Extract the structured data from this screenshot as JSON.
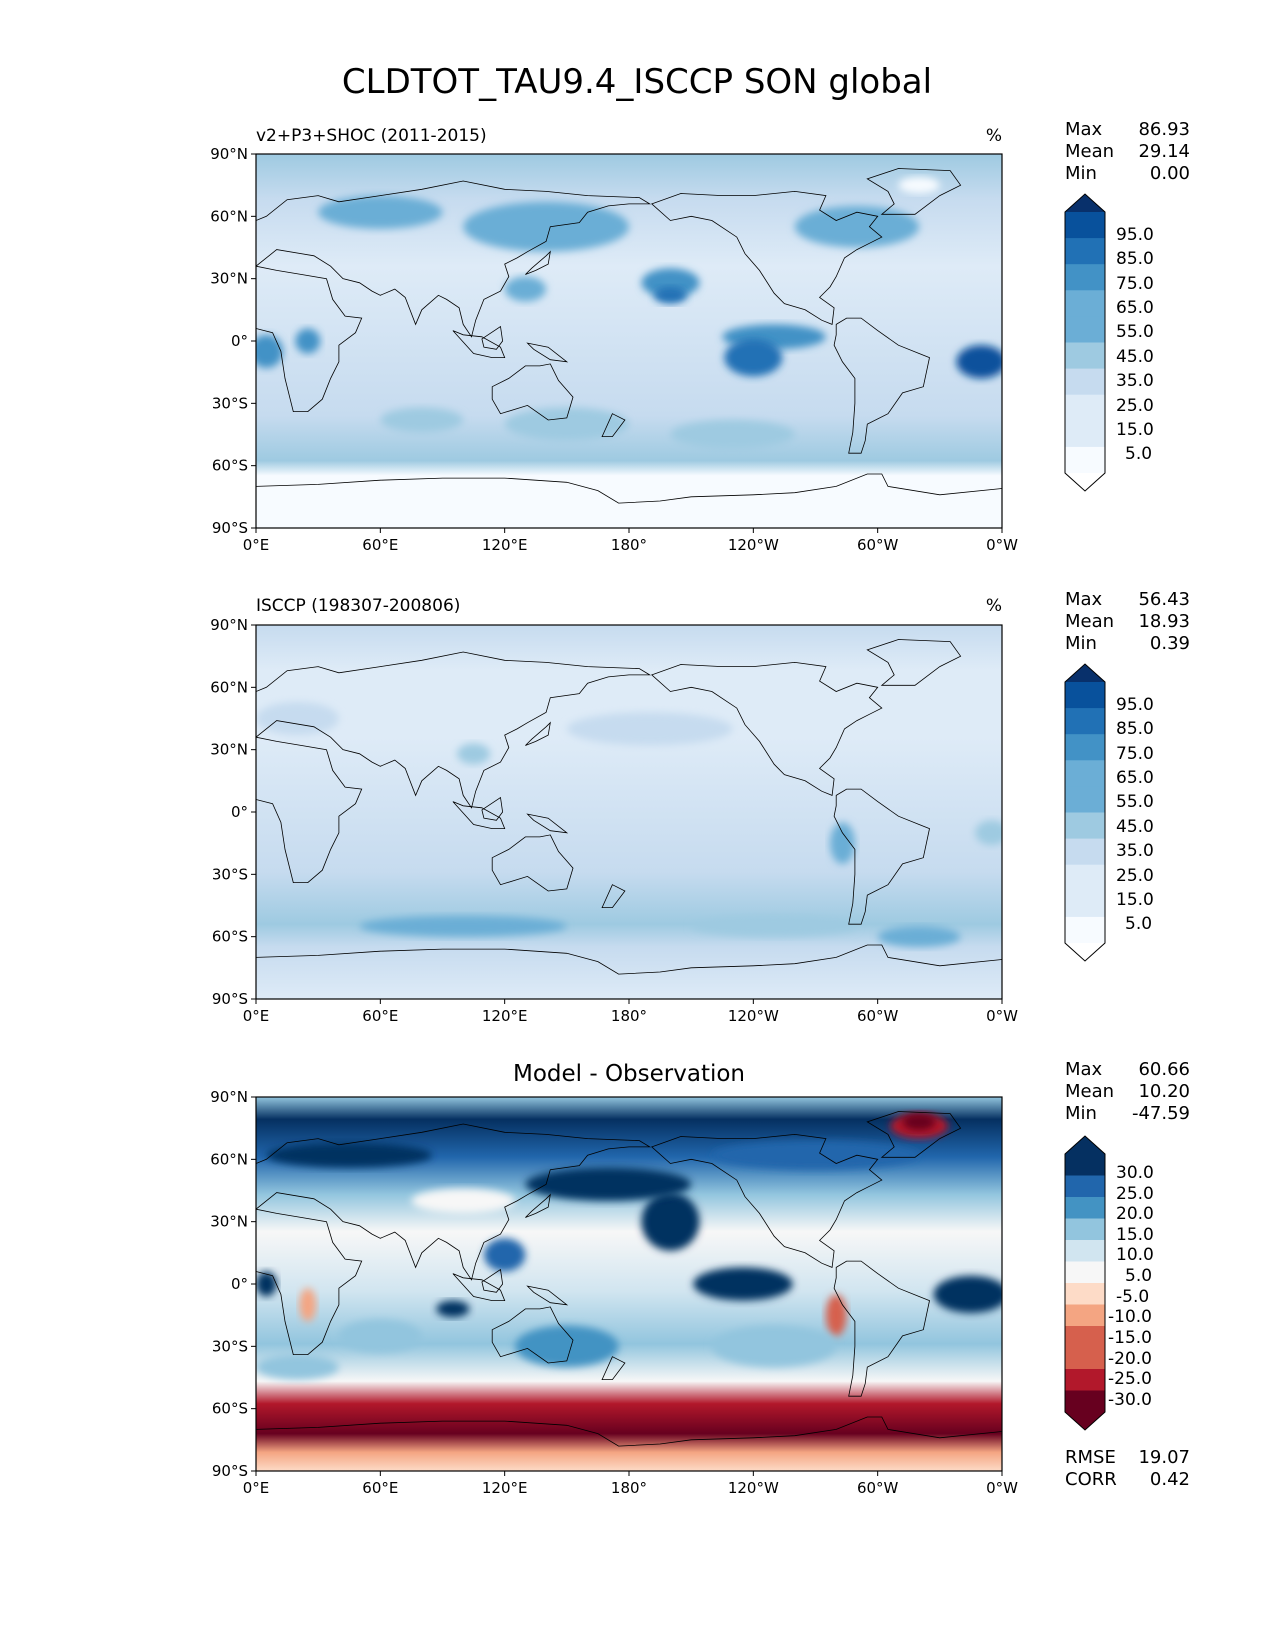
{
  "figure": {
    "title": "CLDTOT_TAU9.4_ISCCP SON global"
  },
  "colors": {
    "blues": [
      "#f7fbff",
      "#deebf7",
      "#c6dbef",
      "#9ecae1",
      "#6baed6",
      "#4292c6",
      "#2171b5",
      "#08519c",
      "#08306b"
    ],
    "diff": [
      "#67001f",
      "#b2182b",
      "#d6604d",
      "#f4a582",
      "#fddbc7",
      "#f7f7f7",
      "#d1e5f0",
      "#92c5de",
      "#4393c3",
      "#2166ac",
      "#053061"
    ],
    "land_outline": "#000000"
  },
  "axes": {
    "lat_ticks": [
      "90°N",
      "60°N",
      "30°N",
      "0°",
      "30°S",
      "60°S",
      "90°S"
    ],
    "lon_ticks": [
      "0°E",
      "60°E",
      "120°E",
      "180°",
      "120°W",
      "60°W",
      "0°W"
    ]
  },
  "panels": [
    {
      "id": "model",
      "left_label": "v2+P3+SHOC (2011-2015)",
      "center_label": "",
      "units": "%",
      "stats": [
        [
          "Max",
          "86.93"
        ],
        [
          "Mean",
          "29.14"
        ],
        [
          "Min",
          "0.00"
        ]
      ],
      "colorbar_labels": [
        "95.0",
        "85.0",
        "75.0",
        "65.0",
        "55.0",
        "45.0",
        "35.0",
        "25.0",
        "15.0",
        "5.0"
      ],
      "footer_stats": []
    },
    {
      "id": "obs",
      "left_label": "ISCCP (198307-200806)",
      "center_label": "",
      "units": "%",
      "stats": [
        [
          "Max",
          "56.43"
        ],
        [
          "Mean",
          "18.93"
        ],
        [
          "Min",
          "0.39"
        ]
      ],
      "colorbar_labels": [
        "95.0",
        "85.0",
        "75.0",
        "65.0",
        "55.0",
        "45.0",
        "35.0",
        "25.0",
        "15.0",
        "5.0"
      ],
      "footer_stats": []
    },
    {
      "id": "diff",
      "left_label": "",
      "center_label": "Model - Observation",
      "units": "",
      "stats": [
        [
          "Max",
          "60.66"
        ],
        [
          "Mean",
          "10.20"
        ],
        [
          "Min",
          "-47.59"
        ]
      ],
      "colorbar_labels": [
        "30.0",
        "25.0",
        "20.0",
        "15.0",
        "10.0",
        "5.0",
        "-5.0",
        "-10.0",
        "-15.0",
        "-20.0",
        "-25.0",
        "-30.0"
      ],
      "footer_stats": [
        [
          "RMSE",
          "19.07"
        ],
        [
          "CORR",
          "0.42"
        ]
      ]
    }
  ]
}
